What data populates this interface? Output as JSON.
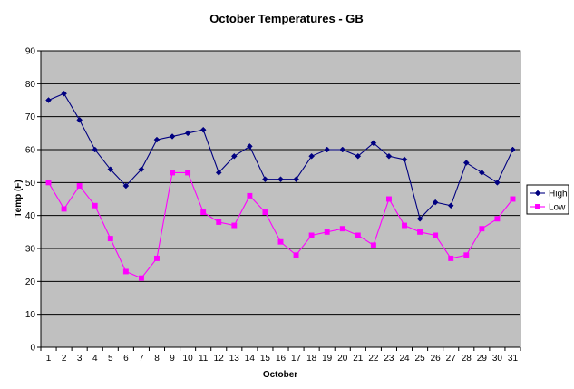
{
  "chart_data": {
    "type": "line",
    "title": "October Temperatures - GB",
    "xlabel": "October",
    "ylabel": "Temp (F)",
    "ylim": [
      0,
      90
    ],
    "yticks": [
      0,
      10,
      20,
      30,
      40,
      50,
      60,
      70,
      80,
      90
    ],
    "x": [
      "1",
      "2",
      "3",
      "4",
      "5",
      "6",
      "7",
      "8",
      "9",
      "10",
      "11",
      "12",
      "13",
      "14",
      "15",
      "16",
      "17",
      "18",
      "19",
      "20",
      "21",
      "22",
      "23",
      "24",
      "25",
      "26",
      "27",
      "28",
      "29",
      "30",
      "31"
    ],
    "grid": "horizontal",
    "legend_position": "right",
    "plot_background": "#c0c0c0",
    "series": [
      {
        "name": "High",
        "color": "#000080",
        "marker": "diamond",
        "values": [
          75,
          77,
          69,
          60,
          54,
          49,
          54,
          63,
          64,
          65,
          66,
          53,
          58,
          61,
          51,
          51,
          51,
          58,
          60,
          60,
          58,
          62,
          58,
          57,
          39,
          44,
          43,
          56,
          53,
          50,
          60
        ]
      },
      {
        "name": "Low",
        "color": "#ff00ff",
        "marker": "square",
        "values": [
          50,
          42,
          49,
          43,
          33,
          23,
          21,
          27,
          53,
          53,
          41,
          38,
          37,
          46,
          41,
          32,
          28,
          34,
          35,
          36,
          34,
          31,
          45,
          37,
          35,
          34,
          27,
          28,
          36,
          39,
          45
        ]
      }
    ]
  }
}
